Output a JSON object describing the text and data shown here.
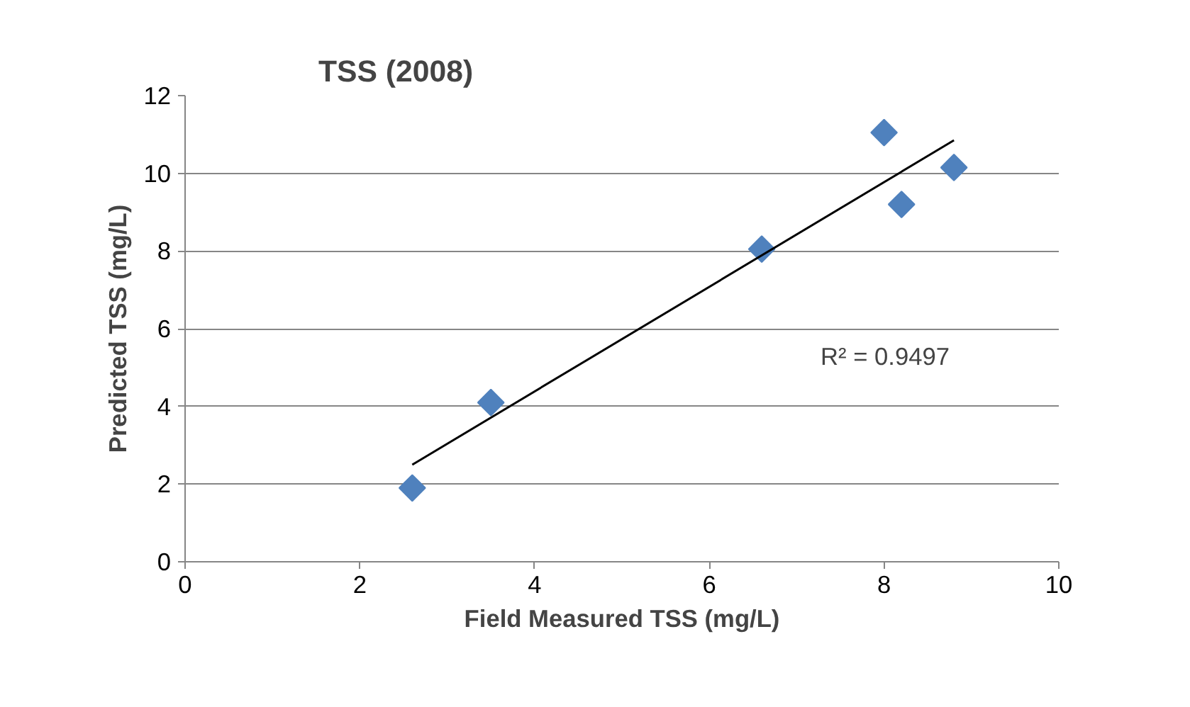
{
  "chart_data": {
    "type": "scatter",
    "title": "TSS (2008)",
    "xlabel": "Field Measured TSS (mg/L)",
    "ylabel": "Predicted TSS (mg/L)",
    "x": [
      2.6,
      3.5,
      6.6,
      8.0,
      8.2,
      8.8
    ],
    "series": [
      {
        "color": "#4f81bd",
        "values": [
          1.9,
          4.1,
          8.05,
          11.05,
          9.2,
          10.15
        ]
      },
      {
        "type": "line",
        "marker": "none",
        "color": "#000000",
        "x": [
          2.6,
          8.8
        ],
        "values": [
          2.5,
          10.85
        ]
      }
    ],
    "xlim": [
      0,
      10
    ],
    "ylim": [
      0,
      12
    ],
    "xticks": [
      0,
      2,
      4,
      6,
      8,
      10
    ],
    "yticks": [
      0,
      2,
      4,
      6,
      8,
      10,
      12
    ],
    "grid": "y",
    "marker": "diamond",
    "annotations": [
      "R² = 0.9497"
    ]
  }
}
